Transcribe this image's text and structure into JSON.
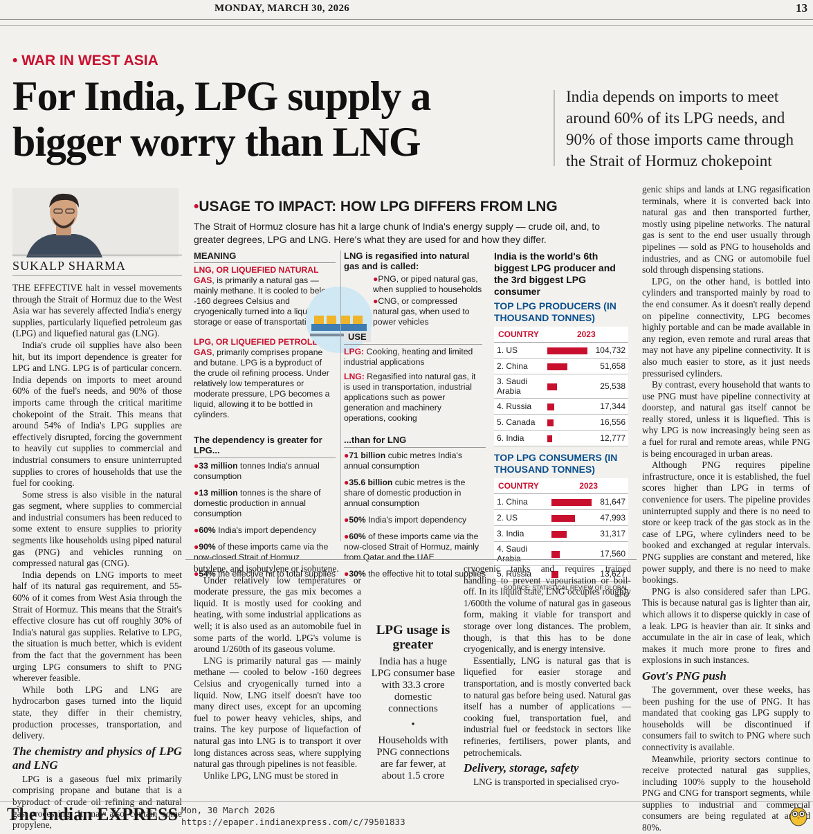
{
  "header": {
    "date": "MONDAY, MARCH 30, 2026",
    "page": "13"
  },
  "kicker": "• WAR IN WEST ASIA",
  "headline": "For India, LPG supply a bigger worry than LNG",
  "deck": "India depends on imports to meet around 60% of its LPG needs, and 90% of those imports came through the Strait of Hormuz chokepoint",
  "byline": "SUKALP SHARMA",
  "col1": [
    "THE EFFECTIVE halt in vessel movements through the Strait of Hormuz due to the West Asia war has severely affected India's energy supplies, particularly liquefied petroleum gas (LPG) and liquefied natural gas (LNG).",
    "India's crude oil supplies have also been hit, but its import dependence is greater for LPG and LNG. LPG is of particular concern. India depends on imports to meet around 60% of the fuel's needs, and 90% of those imports came through the critical maritime chokepoint of the Strait. This means that around 54% of India's LPG supplies are effectively disrupted, forcing the government to heavily cut supplies to commercial and industrial consumers to ensure uninterrupted supplies to crores of households that use the fuel for cooking.",
    "Some stress is also visible in the natural gas segment, where supplies to commercial and industrial consumers has been reduced to some extent to ensure supplies to priority segments like households using piped natural gas (PNG) and vehicles running on compressed natural gas (CNG).",
    "India depends on LNG imports to meet half of its natural gas requirement, and 55-60% of it comes from West Asia through the Strait of Hormuz. This means that the Strait's effective closure has cut off roughly 30% of India's natural gas supplies. Relative to LPG, the situation is much better, which is evident from the fact that the government has been urging LPG consumers to shift to PNG wherever feasible.",
    "While both LPG and LNG are hydrocarbon gases turned into the liquid state, they differ in their chemistry, production processes, transportation, and delivery."
  ],
  "col1_sub": "The chemistry and physics of LPG and LNG",
  "col1_end": "LPG is a gaseous fuel mix primarily comprising propane and butane that is a byproduct of crude oil refining and natural gas processing. It may also contain some propylene,",
  "col2": [
    "butylene, and isobutylene or isobutene.",
    "Under relatively low temperatures or moderate pressure, the gas mix becomes a liquid. It is mostly used for cooking and heating, with some industrial applications as well; it is also used as an automobile fuel in some parts of the world. LPG's volume is around 1/260th of its gaseous volume.",
    "LNG is primarily natural gas — mainly methane — cooled to below -160 degrees Celsius and cryogenically turned into a liquid. Now, LNG itself doesn't have too many direct uses, except for an upcoming fuel to power heavy vehicles, ships, and trains. The key purpose of liquefaction of natural gas into LNG is to transport it over long distances across seas, where supplying natural gas through pipelines is not feasible.",
    "Unlike LPG, LNG must be stored in"
  ],
  "pullquote": {
    "title": "LPG usage is greater",
    "text1": "India has a huge LPG consumer base with 33.3 crore domestic connections",
    "sep": "•",
    "text2": "Households with PNG connections are far fewer, at about 1.5 crore"
  },
  "col3": [
    "cryogenic tanks and requires trained handling to prevent vapourisation or boil-off. In its liquid state, LNG occupies roughly 1/600th the volume of natural gas in gaseous form, making it viable for transport and storage over long distances. The problem, though, is that this has to be done cryogenically, and is energy intensive.",
    "Essentially, LNG is natural gas that is liquefied for easier storage and transportation, and is mostly converted back to natural gas before being used. Natural gas itself has a number of applications — cooking fuel, transportation fuel, and industrial fuel or feedstock in sectors like refineries, fertilisers, power plants, and petrochemicals."
  ],
  "col3_sub": "Delivery, storage, safety",
  "col3_end": "LNG is transported in specialised cryo-",
  "col4": [
    "genic ships and lands at LNG regasification terminals, where it is converted back into natural gas and then transported further, mostly using pipeline networks. The natural gas is sent to the end user usually through pipelines — sold as PNG to households and industries, and as CNG or automobile fuel sold through dispensing stations.",
    "LPG, on the other hand, is bottled into cylinders and transported mainly by road to the end consumer. As it doesn't really depend on pipeline connectivity, LPG becomes highly portable and can be made available in any region, even remote and rural areas that may not have any pipeline connectivity. It is also much easier to store, as it just needs pressurised cylinders.",
    "By contrast, every household that wants to use PNG must have pipeline connectivity at doorstep, and natural gas itself cannot be really stored, unless it is liquefied. This is why LPG is now increasingly being seen as a fuel for rural and remote areas, while PNG is being encouraged in urban areas.",
    "Although PNG requires pipeline infrastructure, once it is established, the fuel scores higher than LPG in terms of convenience for users. The pipeline provides uninterrupted supply and there is no need to store or keep track of the gas stock as in the case of LPG, where cylinders need to be booked and exchanged at regular intervals. PNG supplies are constant and metered, like power supply, and there is no need to make bookings.",
    "PNG is also considered safer than LPG. This is because natural gas is lighter than air, which allows it to disperse quickly in case of a leak. LPG is heavier than air. It sinks and accumulate in the air in case of leak, which makes it much more prone to fires and explosions in such instances."
  ],
  "col4_sub": "Govt's PNG push",
  "col4_end": [
    "The government, over these weeks, has been pushing for the use of PNG. It has mandated that cooking gas LPG supply to households will be discontinued if consumers fail to switch to PNG where such connectivity is available.",
    "Meanwhile, priority sectors continue to receive protected natural gas supplies, including 100% supply to the household PNG and CNG for transport segments, while supplies to industrial and commercial consumers are being regulated at around 80%."
  ],
  "graphic": {
    "title": "USAGE TO IMPACT: HOW LPG DIFFERS FROM LNG",
    "intro": "The Strait of Hormuz closure has hit a large chunk of India's energy supply — crude oil, and, to greater degrees, LPG and LNG. Here's what they are used for and how they differ.",
    "meaning_hd": "MEANING",
    "lng_term": "LNG, OR LIQUEFIED NATURAL GAS",
    "lng_def": ", is primarily a natural gas — mainly methane. It is cooled to below -160 degrees Celsius and cryogenically turned into a liquid for storage or ease of transportation",
    "lpg_term": "LPG, OR LIQUEFIED PETROLEUM GAS",
    "lpg_def": ", primarily comprises propane and butane. LPG is a byproduct of the crude oil refining process. Under relatively low temperatures or moderate pressure, LPG becomes a liquid, allowing it to be bottled in cylinders.",
    "regas_hd": "LNG is regasified into natural gas and is called:",
    "png_item": "PNG, or piped natural gas, when supplied to households",
    "cng_item": "CNG, or compressed natural gas, when used to power vehicles",
    "use_hd": "USE",
    "lpg_use_term": "LPG:",
    "lpg_use": " Cooking, heating and limited industrial applications",
    "lng_use_term": "LNG:",
    "lng_use": " Regasified into natural gas, it is used in transportation, industrial applications such as power generation and machinery operations, cooking",
    "dep_lpg_hd": "The dependency is greater for LPG...",
    "dep_lpg": [
      {
        "b": "33 million",
        "t": " tonnes India's annual consumption"
      },
      {
        "b": "13 million",
        "t": " tonnes is the share of domestic production in annual consumption"
      },
      {
        "b": "60%",
        "t": " India's import dependency"
      },
      {
        "b": "90%",
        "t": " of these imports came via the now-closed Strait of Hormuz"
      },
      {
        "b": "54%",
        "t": " the effective hit to total supplies"
      }
    ],
    "dep_lng_hd": "...than for LNG",
    "dep_lng": [
      {
        "b": "71 billion",
        "t": " cubic metres India's annual consumption"
      },
      {
        "b": "35.6 billion",
        "t": " cubic metres is the share of domestic production in annual consumption"
      },
      {
        "b": "50%",
        "t": " India's import dependency"
      },
      {
        "b": "60%",
        "t": " of these imports came via the now-closed Strait of Hormuz, mainly from Qatar and the UAE"
      },
      {
        "b": "30%",
        "t": " the effective hit to total supplies"
      }
    ],
    "rank_text": "India is the world's 6th biggest LPG producer and the 3rd biggest LPG consumer",
    "source": "SOURCE: STATISTICAL REVIEW OF GLOBAL LPG"
  },
  "chart_data": [
    {
      "type": "table",
      "title": "TOP LPG PRODUCERS (IN THOUSAND TONNES)",
      "columns": [
        "COUNTRY",
        "2023"
      ],
      "rows": [
        [
          "1. US",
          "104,732"
        ],
        [
          "2. China",
          "51,658"
        ],
        [
          "3. Saudi Arabia",
          "25,538"
        ],
        [
          "4. Russia",
          "17,344"
        ],
        [
          "5. Canada",
          "16,556"
        ],
        [
          "6. India",
          "12,777"
        ]
      ],
      "values": [
        104732,
        51658,
        25538,
        17344,
        16556,
        12777
      ]
    },
    {
      "type": "table",
      "title": "TOP LPG CONSUMERS (IN THOUSAND TONNES)",
      "columns": [
        "COUNTRY",
        "2023"
      ],
      "rows": [
        [
          "1. China",
          "81,647"
        ],
        [
          "2. US",
          "47,993"
        ],
        [
          "3. India",
          "31,317"
        ],
        [
          "4. Saudi Arabia",
          "17,560"
        ],
        [
          "5. Russia",
          "13,627"
        ]
      ],
      "values": [
        81647,
        47993,
        31317,
        17560,
        13627
      ]
    }
  ],
  "footer": {
    "logo": "The Indian EXPRESS",
    "date": "Mon, 30 March 2026",
    "url": "https://epaper.indianexpress.com/c/79501833"
  }
}
